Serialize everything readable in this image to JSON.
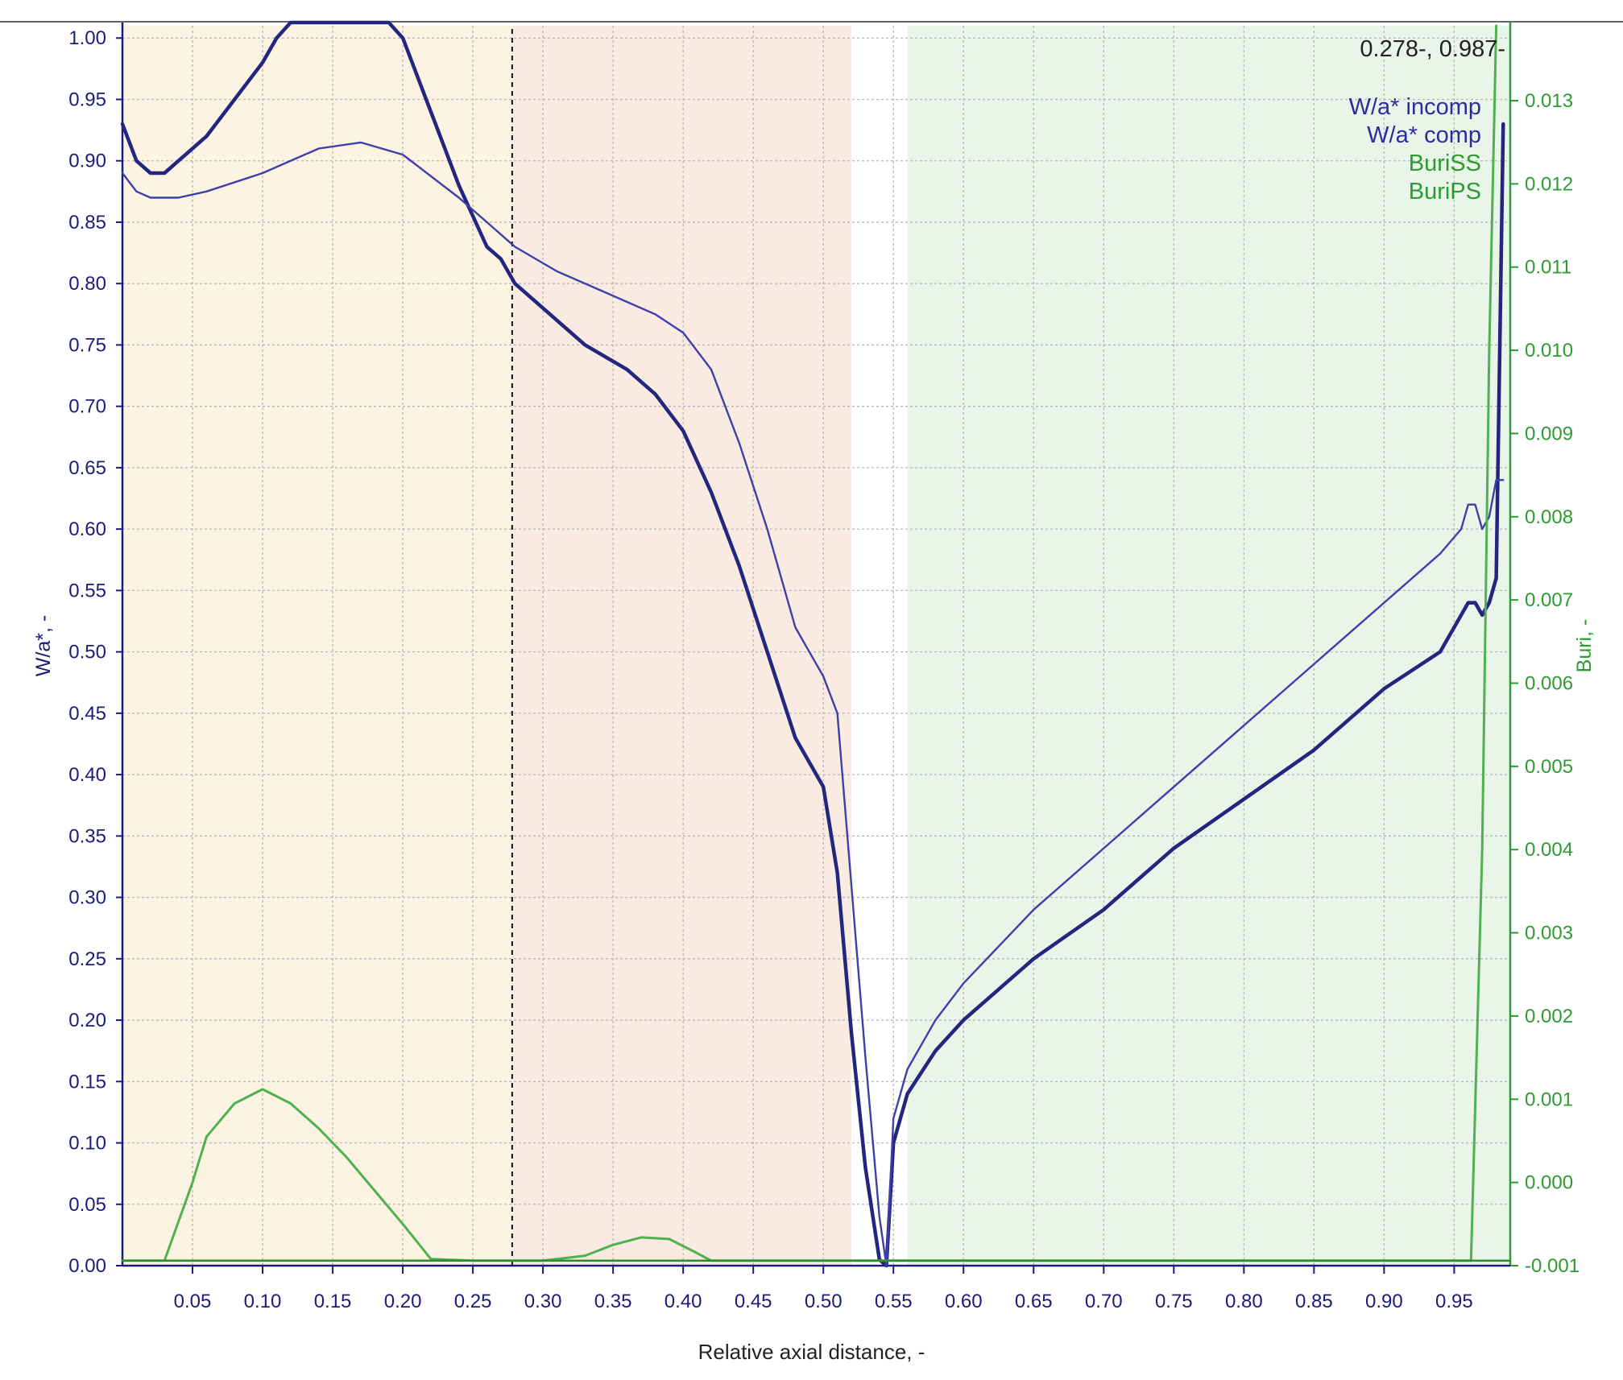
{
  "chart_data": {
    "type": "line",
    "xlabel": "Relative axial distance, -",
    "ylabel": "W/a*, -",
    "y2label": "Buri, -",
    "xlim": [
      0.0,
      0.99
    ],
    "ylim": [
      0.0,
      1.01
    ],
    "y2lim": [
      -0.001,
      0.0139
    ],
    "x_ticks": [
      "0.05",
      "0.10",
      "0.15",
      "0.20",
      "0.25",
      "0.30",
      "0.35",
      "0.40",
      "0.45",
      "0.50",
      "0.55",
      "0.60",
      "0.65",
      "0.70",
      "0.75",
      "0.80",
      "0.85",
      "0.90",
      "0.95"
    ],
    "y_ticks": [
      "0.00",
      "0.05",
      "0.10",
      "0.15",
      "0.20",
      "0.25",
      "0.30",
      "0.35",
      "0.40",
      "0.45",
      "0.50",
      "0.55",
      "0.60",
      "0.65",
      "0.70",
      "0.75",
      "0.80",
      "0.85",
      "0.90",
      "0.95",
      "1.00"
    ],
    "y2_ticks": [
      "-0.001",
      "0.000",
      "0.001",
      "0.002",
      "0.003",
      "0.004",
      "0.005",
      "0.006",
      "0.007",
      "0.008",
      "0.009",
      "0.010",
      "0.011",
      "0.012",
      "0.013"
    ],
    "grid": true,
    "legend_position": "top-right",
    "cursor_readout": "0.278-, 0.987-",
    "cursor_x": 0.278,
    "regions": [
      {
        "from": 0.0,
        "to": 0.278,
        "color": "#fdf3e3"
      },
      {
        "from": 0.278,
        "to": 0.52,
        "color": "#f9ebe1"
      },
      {
        "from": 0.56,
        "to": 0.99,
        "color": "#e9f5e9"
      }
    ],
    "series": [
      {
        "name": "W/a* incomp",
        "axis": "left",
        "color": "#23267e",
        "x": [
          0.0,
          0.01,
          0.02,
          0.03,
          0.04,
          0.05,
          0.06,
          0.08,
          0.1,
          0.11,
          0.12,
          0.13,
          0.15,
          0.17,
          0.19,
          0.2,
          0.22,
          0.24,
          0.26,
          0.27,
          0.28,
          0.3,
          0.33,
          0.36,
          0.38,
          0.4,
          0.42,
          0.44,
          0.46,
          0.48,
          0.5,
          0.51,
          0.52,
          0.53,
          0.54,
          0.545,
          0.55,
          0.56,
          0.58,
          0.6,
          0.65,
          0.7,
          0.75,
          0.8,
          0.85,
          0.9,
          0.94,
          0.955,
          0.96,
          0.965,
          0.97,
          0.975,
          0.98,
          0.985
        ],
        "values": [
          0.93,
          0.9,
          0.89,
          0.89,
          0.9,
          0.91,
          0.92,
          0.95,
          0.98,
          1.0,
          1.02,
          1.03,
          1.035,
          1.035,
          1.03,
          1.0,
          0.94,
          0.88,
          0.83,
          0.82,
          0.8,
          0.78,
          0.75,
          0.73,
          0.71,
          0.68,
          0.63,
          0.57,
          0.5,
          0.43,
          0.39,
          0.32,
          0.19,
          0.08,
          0.005,
          0.0,
          0.1,
          0.14,
          0.175,
          0.2,
          0.25,
          0.29,
          0.34,
          0.38,
          0.42,
          0.47,
          0.5,
          0.53,
          0.54,
          0.54,
          0.53,
          0.54,
          0.56,
          0.93
        ]
      },
      {
        "name": "W/a* comp",
        "axis": "left",
        "color": "#3d40a8",
        "x": [
          0.0,
          0.01,
          0.02,
          0.04,
          0.06,
          0.1,
          0.14,
          0.17,
          0.2,
          0.24,
          0.26,
          0.28,
          0.31,
          0.35,
          0.38,
          0.4,
          0.42,
          0.44,
          0.46,
          0.48,
          0.5,
          0.51,
          0.52,
          0.53,
          0.54,
          0.545,
          0.55,
          0.56,
          0.58,
          0.6,
          0.65,
          0.7,
          0.75,
          0.8,
          0.85,
          0.9,
          0.94,
          0.955,
          0.96,
          0.965,
          0.97,
          0.975,
          0.98,
          0.985
        ],
        "values": [
          0.89,
          0.875,
          0.87,
          0.87,
          0.875,
          0.89,
          0.91,
          0.915,
          0.905,
          0.87,
          0.85,
          0.83,
          0.81,
          0.79,
          0.775,
          0.76,
          0.73,
          0.67,
          0.6,
          0.52,
          0.48,
          0.45,
          0.31,
          0.17,
          0.04,
          0.0,
          0.12,
          0.16,
          0.2,
          0.23,
          0.29,
          0.34,
          0.39,
          0.44,
          0.49,
          0.54,
          0.58,
          0.6,
          0.62,
          0.62,
          0.6,
          0.61,
          0.64,
          0.64
        ]
      },
      {
        "name": "BuriSS",
        "axis": "right",
        "color": "#4fb14f",
        "x": [
          0.0,
          0.025,
          0.03,
          0.05,
          0.06,
          0.08,
          0.1,
          0.12,
          0.14,
          0.16,
          0.18,
          0.2,
          0.22,
          0.25,
          0.3,
          0.33,
          0.35,
          0.37,
          0.39,
          0.41,
          0.42,
          0.45,
          0.5,
          0.55,
          0.6,
          0.7,
          0.8,
          0.9,
          0.95,
          0.962,
          0.97,
          0.975,
          0.98
        ],
        "values": [
          -0.00094,
          -0.00094,
          -0.00094,
          0.0,
          0.00055,
          0.00095,
          0.00112,
          0.00095,
          0.00065,
          0.0003,
          -0.0001,
          -0.0005,
          -0.00092,
          -0.00094,
          -0.00094,
          -0.00088,
          -0.00075,
          -0.00066,
          -0.00068,
          -0.00085,
          -0.00094,
          -0.00094,
          -0.00094,
          -0.00094,
          -0.00094,
          -0.00094,
          -0.00094,
          -0.00094,
          -0.00094,
          -0.00094,
          0.004,
          0.01,
          0.0139
        ]
      },
      {
        "name": "BuriPS",
        "axis": "right",
        "color": "#2e8b2e",
        "x": [
          0.0,
          0.99
        ],
        "values": [
          -0.00094,
          -0.00094
        ]
      }
    ]
  }
}
